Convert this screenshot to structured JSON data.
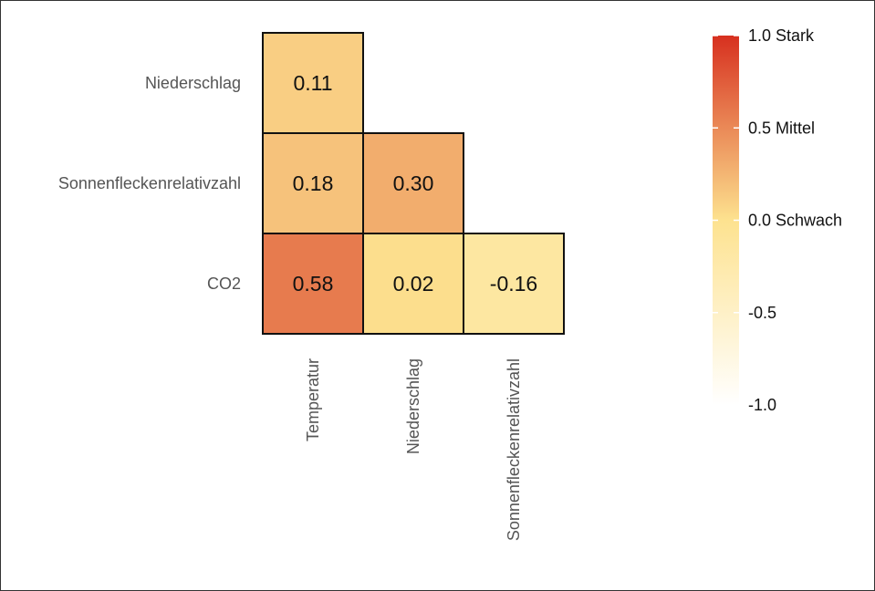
{
  "chart_data": {
    "type": "heatmap",
    "rows": [
      "Niederschlag",
      "Sonnenfleckenrelativzahl",
      "CO2"
    ],
    "columns": [
      "Temperatur",
      "Niederschlag",
      "Sonnenfleckenrelativzahl"
    ],
    "cells": [
      {
        "row": "Niederschlag",
        "column": "Temperatur",
        "value": 0.11,
        "label": "0.11"
      },
      {
        "row": "Sonnenfleckenrelativzahl",
        "column": "Temperatur",
        "value": 0.18,
        "label": "0.18"
      },
      {
        "row": "Sonnenfleckenrelativzahl",
        "column": "Niederschlag",
        "value": 0.3,
        "label": "0.30"
      },
      {
        "row": "CO2",
        "column": "Temperatur",
        "value": 0.58,
        "label": "0.58"
      },
      {
        "row": "CO2",
        "column": "Niederschlag",
        "value": 0.02,
        "label": "0.02"
      },
      {
        "row": "CO2",
        "column": "Sonnenfleckenrelativzahl",
        "value": -0.16,
        "label": "-0.16"
      }
    ],
    "legend": {
      "range": [
        -1.0,
        1.0
      ],
      "ticks": [
        {
          "value": 1.0,
          "label": "1.0 Stark"
        },
        {
          "value": 0.5,
          "label": "0.5 Mittel"
        },
        {
          "value": 0.0,
          "label": "0.0 Schwach"
        },
        {
          "value": -0.5,
          "label": "-0.5"
        },
        {
          "value": -1.0,
          "label": "-1.0"
        }
      ],
      "colors": {
        "low": "#ffffff",
        "mid": "#fde28f",
        "high": "#d7301f"
      }
    }
  }
}
